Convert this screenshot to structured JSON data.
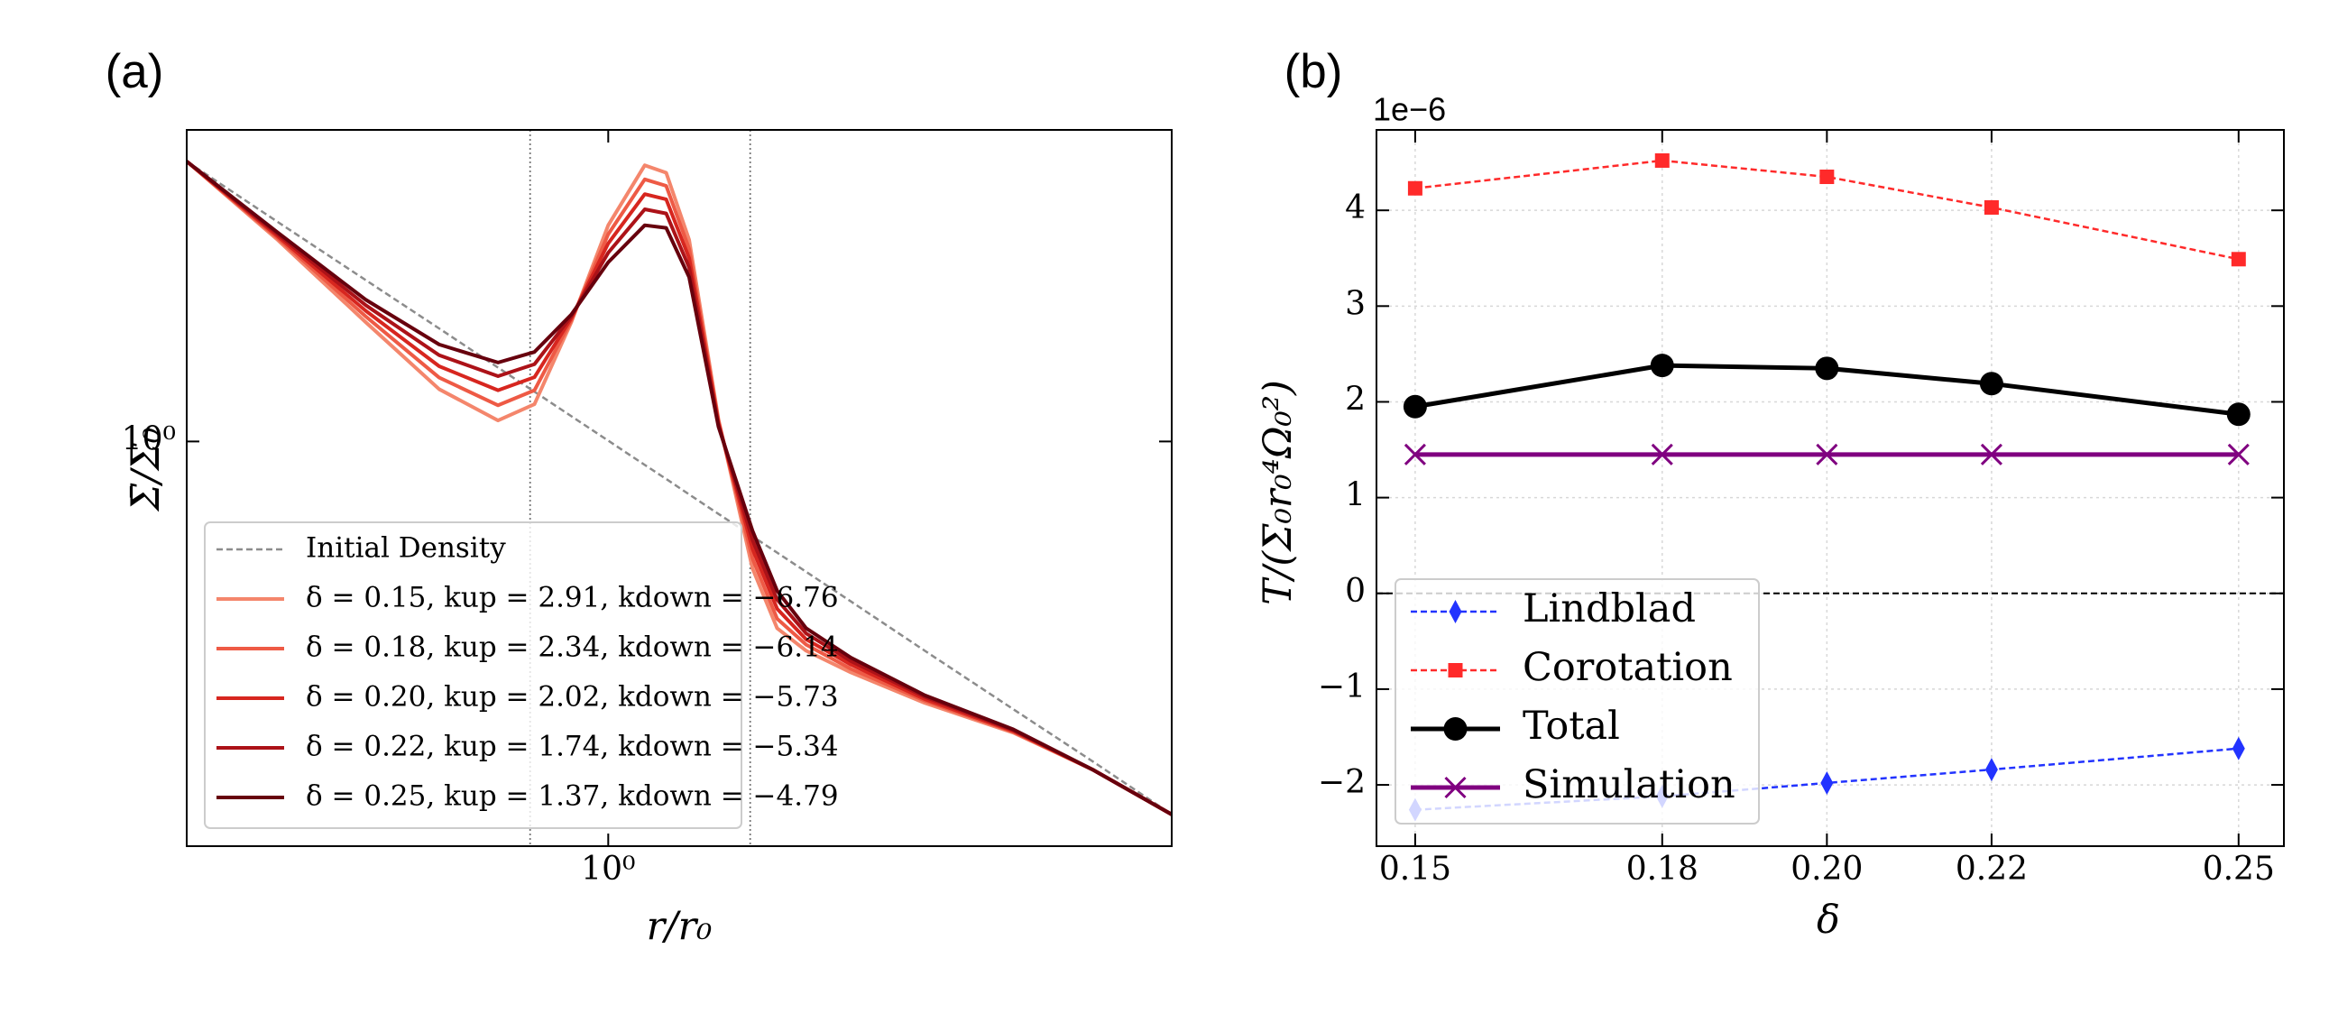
{
  "chart_data": [
    {
      "type": "line",
      "panel": "(a)",
      "xlabel": "r/r₀",
      "ylabel": "Σ̄/Σ₀",
      "xscale": "log",
      "yscale": "log",
      "xlim": [
        0.3,
        5
      ],
      "ylim": [
        0.37,
        2.15
      ],
      "xticks": [
        {
          "value": 1,
          "label": "10⁰"
        }
      ],
      "yticks": [
        {
          "value": 1,
          "label": "10⁰"
        }
      ],
      "vlines": [
        0.8,
        1.5
      ],
      "legend": "lower left",
      "grid": false,
      "x": [
        0.3,
        0.389,
        0.5,
        0.617,
        0.73,
        0.81,
        0.9,
        1.0,
        1.11,
        1.18,
        1.26,
        1.37,
        1.51,
        1.62,
        1.76,
        2.0,
        2.47,
        3.18,
        4.0,
        5.0
      ],
      "series": [
        {
          "name": "Initial Density",
          "color": "#8c8c8c",
          "dash": true,
          "values": [
            1.99,
            1.715,
            1.487,
            1.32,
            1.199,
            1.13,
            1.064,
            1.002,
            0.944,
            0.912,
            0.878,
            0.837,
            0.792,
            0.761,
            0.726,
            0.675,
            0.598,
            0.518,
            0.455,
            0.4
          ]
        },
        {
          "name": "δ = 0.15,  kup = 2.91, kdown = −6.76",
          "color": "#f4866c",
          "values": [
            1.99,
            1.641,
            1.341,
            1.137,
            1.053,
            1.096,
            1.341,
            1.701,
            1.971,
            1.935,
            1.641,
            1.056,
            0.732,
            0.632,
            0.598,
            0.567,
            0.526,
            0.489,
            0.446,
            0.4
          ]
        },
        {
          "name": "δ = 0.18,  kup = 2.34, kdown = −6.14",
          "color": "#ee5a45",
          "values": [
            1.99,
            1.649,
            1.36,
            1.17,
            1.093,
            1.134,
            1.347,
            1.664,
            1.904,
            1.874,
            1.605,
            1.051,
            0.75,
            0.647,
            0.607,
            0.572,
            0.529,
            0.49,
            0.446,
            0.4
          ]
        },
        {
          "name": "δ = 0.20,  kup = 2.02, kdown = −5.73",
          "color": "#d7261f",
          "values": [
            1.99,
            1.656,
            1.379,
            1.203,
            1.134,
            1.171,
            1.354,
            1.627,
            1.836,
            1.813,
            1.569,
            1.047,
            0.768,
            0.663,
            0.615,
            0.578,
            0.531,
            0.491,
            0.446,
            0.4
          ]
        },
        {
          "name": "δ = 0.22,  kup = 1.74, kdown = −5.34",
          "color": "#ac1218",
          "values": [
            1.99,
            1.664,
            1.398,
            1.236,
            1.174,
            1.209,
            1.36,
            1.59,
            1.769,
            1.751,
            1.533,
            1.042,
            0.785,
            0.678,
            0.624,
            0.583,
            0.534,
            0.492,
            0.446,
            0.4
          ]
        },
        {
          "name": "δ = 0.25,  kup = 1.37, kdown = −4.79",
          "color": "#67000d",
          "values": [
            1.99,
            1.671,
            1.417,
            1.269,
            1.214,
            1.246,
            1.366,
            1.553,
            1.701,
            1.69,
            1.497,
            1.037,
            0.803,
            0.693,
            0.632,
            0.588,
            0.536,
            0.493,
            0.446,
            0.4
          ]
        }
      ]
    },
    {
      "type": "line",
      "panel": "(b)",
      "xlabel": "δ",
      "ylabel": "T/(Σ₀r₀⁴Ω₀²)",
      "offset_text": "1e−6",
      "xscale": "linear",
      "yscale": "linear",
      "xlim": [
        0.1453,
        0.2555
      ],
      "ylim": [
        -2.64,
        4.84
      ],
      "xticks": [
        0.15,
        0.18,
        {
          "value": 0.2,
          "label": "0.20"
        },
        0.22,
        0.25
      ],
      "yticks": [
        {
          "value": -2,
          "label": "−2"
        },
        {
          "value": -1,
          "label": "−1"
        },
        0,
        1,
        2,
        3,
        4
      ],
      "hlines": [
        0
      ],
      "legend": "lower left",
      "grid": true,
      "x": [
        0.15,
        0.18,
        0.2,
        0.22,
        0.25
      ],
      "series": [
        {
          "name": "Lindblad",
          "color": "#2233ff",
          "dash": true,
          "marker": "diamond",
          "values": [
            -2.26,
            -2.12,
            -1.98,
            -1.84,
            -1.62
          ]
        },
        {
          "name": "Corotation",
          "color": "#ff2a2a",
          "dash": true,
          "marker": "square",
          "values": [
            4.23,
            4.52,
            4.35,
            4.03,
            3.49
          ]
        },
        {
          "name": "Total",
          "color": "#000000",
          "marker": "circle",
          "width": 5,
          "values": [
            1.95,
            2.38,
            2.35,
            2.19,
            1.87
          ]
        },
        {
          "name": "Simulation",
          "color": "#800080",
          "marker": "x",
          "width": 5,
          "values": [
            1.45,
            1.45,
            1.45,
            1.45,
            1.45
          ]
        }
      ]
    }
  ]
}
